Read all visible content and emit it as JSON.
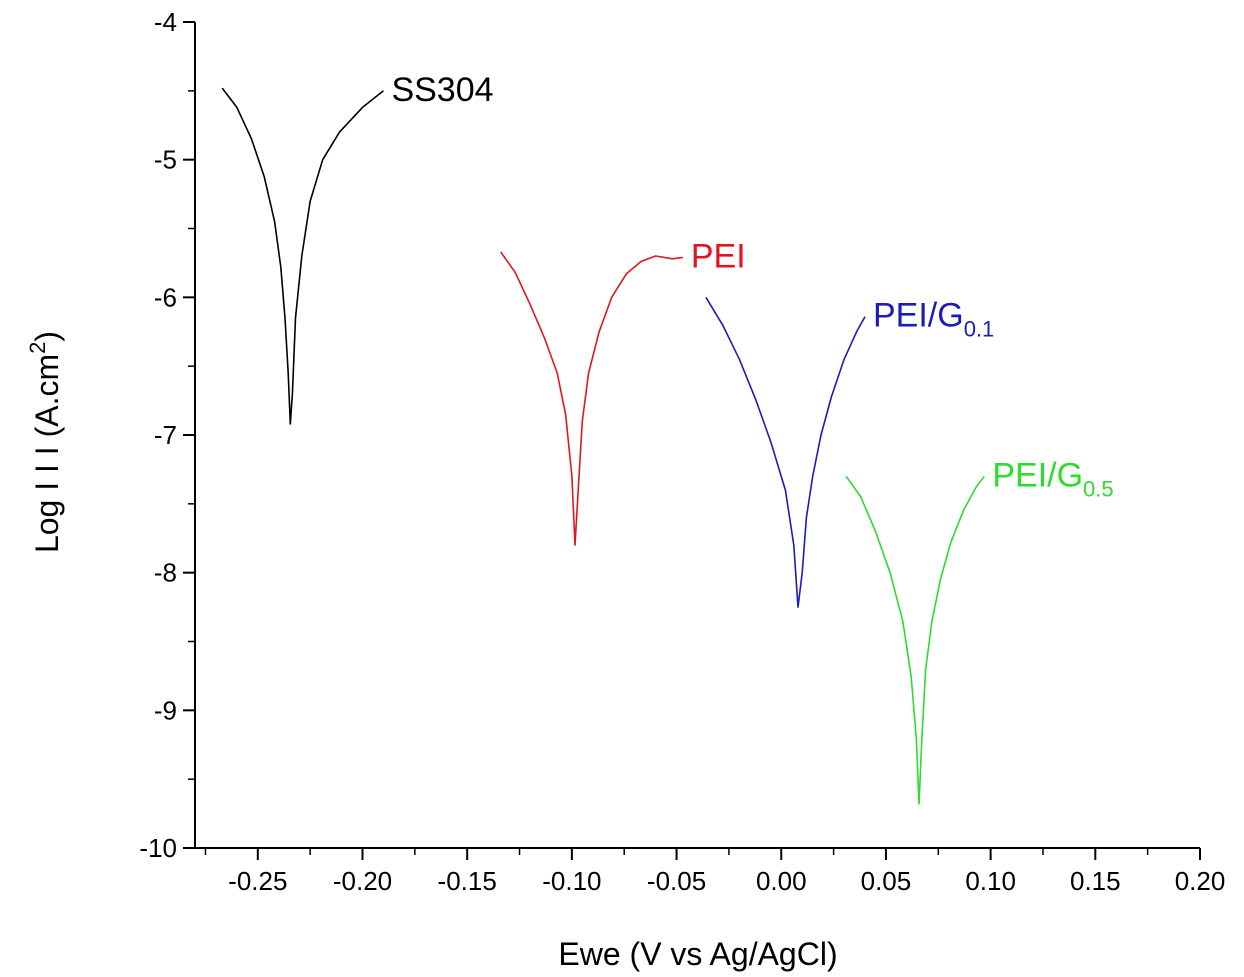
{
  "chart_data": {
    "type": "line",
    "xlabel": "Ewe (V vs Ag/AgCl)",
    "ylabel_main": "Log I I I (A.cm",
    "ylabel_sup": "2",
    "ylabel_close": ")",
    "xlim": [
      -0.28,
      0.2
    ],
    "ylim": [
      -10,
      -4
    ],
    "x_ticks": [
      -0.25,
      -0.2,
      -0.15,
      -0.1,
      -0.05,
      0.0,
      0.05,
      0.1,
      0.15,
      0.2
    ],
    "x_tick_labels": [
      "-0.25",
      "-0.20",
      "-0.15",
      "-0.10",
      "-0.05",
      "0.00",
      "0.05",
      "0.10",
      "0.15",
      "0.20"
    ],
    "y_ticks": [
      -4,
      -5,
      -6,
      -7,
      -8,
      -9,
      -10
    ],
    "y_tick_labels": [
      "-4",
      "-5",
      "-6",
      "-7",
      "-8",
      "-9",
      "-10"
    ],
    "grid": false,
    "series": [
      {
        "name": "SS304",
        "label_main": "SS304",
        "label_sub": "",
        "color": "#000000",
        "ecorr": -0.2335,
        "points": [
          [
            -0.267,
            -4.48
          ],
          [
            -0.26,
            -4.62
          ],
          [
            -0.253,
            -4.85
          ],
          [
            -0.247,
            -5.12
          ],
          [
            -0.242,
            -5.45
          ],
          [
            -0.239,
            -5.78
          ],
          [
            -0.237,
            -6.15
          ],
          [
            -0.2355,
            -6.55
          ],
          [
            -0.2345,
            -6.92
          ],
          [
            -0.2335,
            -6.7
          ],
          [
            -0.232,
            -6.15
          ],
          [
            -0.229,
            -5.7
          ],
          [
            -0.225,
            -5.3
          ],
          [
            -0.219,
            -5.0
          ],
          [
            -0.211,
            -4.8
          ],
          [
            -0.2,
            -4.62
          ],
          [
            -0.19,
            -4.5
          ]
        ]
      },
      {
        "name": "PEI",
        "label_main": "PEI",
        "label_sub": "",
        "color": "#e0161e",
        "ecorr": -0.098,
        "points": [
          [
            -0.134,
            -5.67
          ],
          [
            -0.127,
            -5.82
          ],
          [
            -0.12,
            -6.05
          ],
          [
            -0.113,
            -6.3
          ],
          [
            -0.107,
            -6.55
          ],
          [
            -0.103,
            -6.85
          ],
          [
            -0.1,
            -7.3
          ],
          [
            -0.0985,
            -7.8
          ],
          [
            -0.097,
            -7.4
          ],
          [
            -0.095,
            -6.9
          ],
          [
            -0.092,
            -6.55
          ],
          [
            -0.087,
            -6.25
          ],
          [
            -0.081,
            -6.0
          ],
          [
            -0.074,
            -5.83
          ],
          [
            -0.067,
            -5.74
          ],
          [
            -0.06,
            -5.7
          ],
          [
            -0.052,
            -5.72
          ],
          [
            -0.047,
            -5.71
          ]
        ]
      },
      {
        "name": "PEI/G0.1",
        "label_main": "PEI/G",
        "label_sub": "0.1",
        "color": "#1c1cb8",
        "ecorr": 0.009,
        "points": [
          [
            -0.036,
            -6.0
          ],
          [
            -0.028,
            -6.2
          ],
          [
            -0.02,
            -6.45
          ],
          [
            -0.012,
            -6.75
          ],
          [
            -0.005,
            -7.05
          ],
          [
            0.002,
            -7.4
          ],
          [
            0.006,
            -7.8
          ],
          [
            0.008,
            -8.25
          ],
          [
            0.01,
            -8.0
          ],
          [
            0.012,
            -7.6
          ],
          [
            0.015,
            -7.3
          ],
          [
            0.019,
            -7.0
          ],
          [
            0.024,
            -6.72
          ],
          [
            0.03,
            -6.45
          ],
          [
            0.036,
            -6.25
          ],
          [
            0.04,
            -6.14
          ]
        ]
      },
      {
        "name": "PEI/G0.5",
        "label_main": "PEI/G",
        "label_sub": "0.5",
        "color": "#2edb2e",
        "ecorr": 0.066,
        "points": [
          [
            0.031,
            -7.3
          ],
          [
            0.038,
            -7.45
          ],
          [
            0.045,
            -7.7
          ],
          [
            0.052,
            -8.0
          ],
          [
            0.058,
            -8.35
          ],
          [
            0.062,
            -8.75
          ],
          [
            0.0645,
            -9.2
          ],
          [
            0.0658,
            -9.68
          ],
          [
            0.0672,
            -9.2
          ],
          [
            0.069,
            -8.7
          ],
          [
            0.072,
            -8.35
          ],
          [
            0.076,
            -8.05
          ],
          [
            0.081,
            -7.78
          ],
          [
            0.087,
            -7.55
          ],
          [
            0.093,
            -7.38
          ],
          [
            0.097,
            -7.3
          ]
        ]
      }
    ]
  }
}
